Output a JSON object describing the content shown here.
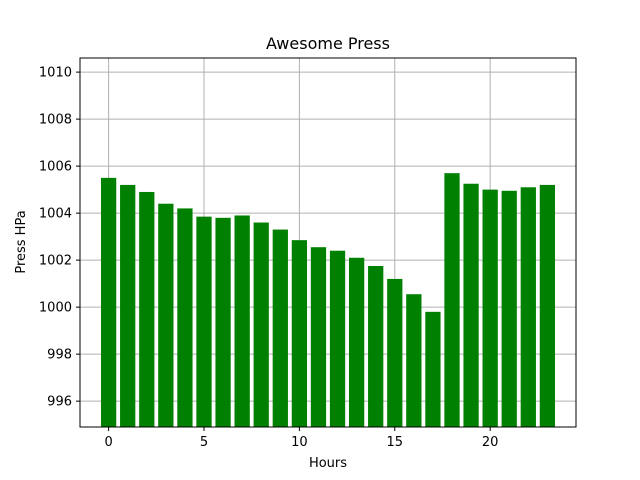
{
  "chart_data": {
    "type": "bar",
    "title": "Awesome Press",
    "xlabel": "Hours",
    "ylabel": "Press HPa",
    "x": [
      0,
      1,
      2,
      3,
      4,
      5,
      6,
      7,
      8,
      9,
      10,
      11,
      12,
      13,
      14,
      15,
      16,
      17,
      18,
      19,
      20,
      21,
      22,
      23
    ],
    "values": [
      1005.5,
      1005.2,
      1004.9,
      1004.4,
      1004.2,
      1003.85,
      1003.8,
      1003.9,
      1003.6,
      1003.3,
      1002.85,
      1002.55,
      1002.4,
      1002.1,
      1001.75,
      1001.2,
      1000.55,
      999.8,
      1005.7,
      1005.25,
      1005.0,
      1004.95,
      1005.1,
      1005.2
    ],
    "xlim": [
      -1.5,
      24.5
    ],
    "ylim": [
      994.9,
      1010.6
    ],
    "xticks": [
      0,
      5,
      10,
      15,
      20
    ],
    "yticks": [
      996,
      998,
      1000,
      1002,
      1004,
      1006,
      1008,
      1010
    ],
    "grid": true,
    "colors": {
      "bar": "#008000",
      "grid": "#b0b0b0",
      "axes": "#000000"
    }
  }
}
